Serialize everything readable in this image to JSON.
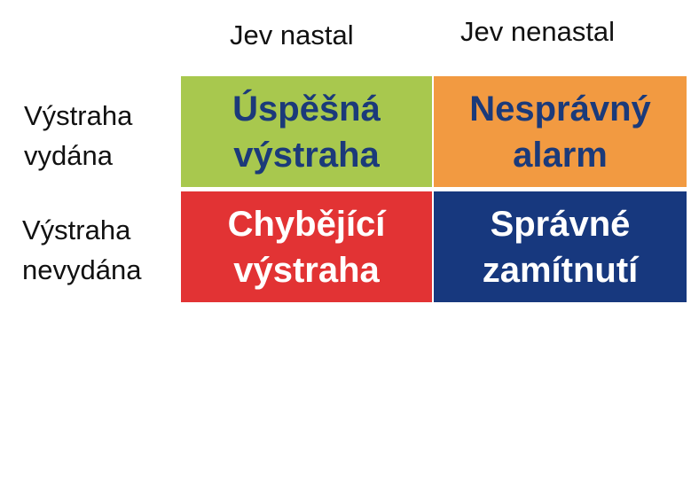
{
  "columns": {
    "occurred": "Jev nastal",
    "not_occurred": "Jev nenastal"
  },
  "rows": {
    "issued": {
      "line1": "Výstraha",
      "line2": "vydána"
    },
    "not_issued": {
      "line1": "Výstraha",
      "line2": "nevydána"
    }
  },
  "cells": {
    "hit": {
      "line1": "Úspěšná",
      "line2": "výstraha",
      "bg": "#a8c84e",
      "fg": "#1b3a7a"
    },
    "false_alarm": {
      "line1": "Nesprávný",
      "line2": "alarm",
      "bg": "#f29a41",
      "fg": "#1b3a7a"
    },
    "miss": {
      "line1": "Chybějící",
      "line2": "výstraha",
      "bg": "#e23334",
      "fg": "#ffffff"
    },
    "correct_rejection": {
      "line1": "Správné",
      "line2": "zamítnutí",
      "bg": "#17387e",
      "fg": "#ffffff"
    }
  }
}
